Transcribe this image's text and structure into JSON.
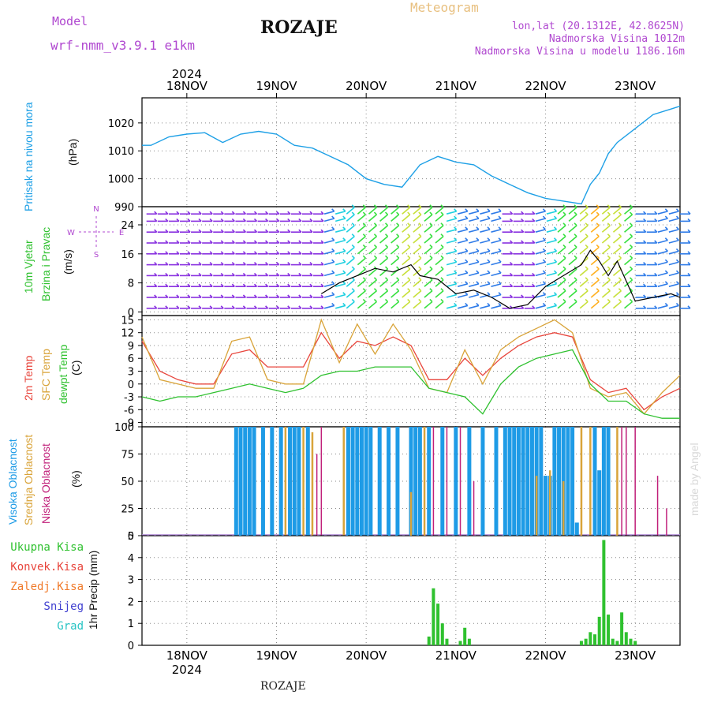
{
  "header": {
    "model_label": "Model",
    "model_name": "wrf-nmm_v3.9.1 e1km",
    "location": "ROZAJE",
    "product": "Meteogram",
    "coords": "lon,lat (20.1312E, 42.8625N)",
    "elevation": "Nadmorska Visina 1012m",
    "model_elevation": "Nadmorska Visina u modelu 1186.16m",
    "footer": "ROZAJE",
    "watermark": "made by Angel"
  },
  "colors": {
    "pressure": "#1ea0e6",
    "temp2m": "#e8453c",
    "sfc": "#d9a43a",
    "dewpt": "#2fc12f",
    "high_cloud": "#1e9be6",
    "mid_cloud": "#d9a43a",
    "low_cloud": "#c0207a",
    "precip_total": "#2fc12f",
    "precip_conv": "#e8453c",
    "precip_ice": "#f07a2a",
    "precip_snow": "#4040d0",
    "precip_grad": "#28c4c4",
    "wind_label": "#2fc12f",
    "model_text": "#b048d0"
  },
  "chart_data": {
    "type": "line",
    "x_axis": {
      "year": "2024",
      "top_labels": [
        "18NOV",
        "19NOV",
        "20NOV",
        "21NOV",
        "22NOV",
        "23NOV"
      ],
      "bottom_labels": [
        "18NOV",
        "19NOV",
        "20NOV",
        "21NOV",
        "22NOV",
        "23NOV"
      ],
      "day_positions": [
        0.5,
        1.5,
        2.5,
        3.5,
        4.5,
        5.5
      ],
      "range": [
        0,
        6
      ]
    },
    "panels": [
      {
        "id": "pressure",
        "ylabel_lines": [
          "Pritisak na nivou mora"
        ],
        "unit": "(hPa)",
        "ylim": [
          990,
          1029
        ],
        "yticks": [
          990,
          1000,
          1010,
          1020
        ],
        "series": [
          {
            "key": "pressure",
            "x": [
              0,
              0.1,
              0.3,
              0.5,
              0.7,
              0.9,
              1.1,
              1.3,
              1.5,
              1.7,
              1.9,
              2.1,
              2.3,
              2.5,
              2.7,
              2.9,
              3.1,
              3.3,
              3.5,
              3.7,
              3.9,
              4.1,
              4.3,
              4.5,
              4.7,
              4.9,
              5.0,
              5.1,
              5.2,
              5.3,
              5.5,
              5.7,
              5.9,
              6.0
            ],
            "y": [
              1012,
              1012,
              1015,
              1016,
              1016.5,
              1013,
              1016,
              1017,
              1016,
              1012,
              1011,
              1008,
              1005,
              1000,
              998,
              997,
              1005,
              1008,
              1006,
              1005,
              1001,
              998,
              995,
              993,
              992,
              991,
              998,
              1002,
              1009,
              1013,
              1018,
              1023,
              1025,
              1026
            ]
          }
        ]
      },
      {
        "id": "wind",
        "ylabel_lines": [
          "10m Vjetar",
          "Brzina i Pravac"
        ],
        "unit": "(m/s)",
        "direction_labels": [
          "N",
          "W",
          "E",
          "S"
        ],
        "ylim": [
          -1,
          29
        ],
        "yticks": [
          0,
          8,
          16,
          24
        ],
        "series": [
          {
            "key": "wind_speed",
            "x": [
              2.0,
              2.2,
              2.4,
              2.6,
              2.8,
              3.0,
              3.1,
              3.3,
              3.5,
              3.7,
              3.9,
              4.1,
              4.3,
              4.5,
              4.7,
              4.9,
              5.0,
              5.1,
              5.2,
              5.3,
              5.5,
              5.7,
              5.9,
              6.0
            ],
            "y": [
              5,
              8,
              10,
              12,
              11,
              13,
              10,
              9,
              5,
              6,
              4,
              1,
              2,
              7,
              10,
              13,
              17,
              14,
              10,
              14,
              3,
              4,
              5,
              4
            ]
          }
        ],
        "barbs": {
          "rows": [
            1,
            4,
            7,
            10,
            13,
            16,
            19,
            22,
            25,
            27
          ],
          "columns": 49,
          "calm_color": "#8830e0",
          "colors": [
            "#8830e0",
            "#2e7be8",
            "#1ed0e0",
            "#38e040",
            "#c8e03a",
            "#ffb020"
          ]
        }
      },
      {
        "id": "temperature",
        "ylabel_lines": [
          "2m Temp",
          "SFC Temp",
          "dewpt Temp"
        ],
        "unit": "(C)",
        "ylim": [
          -10,
          16
        ],
        "yticks": [
          -9,
          -6,
          -3,
          0,
          3,
          6,
          9,
          12,
          15
        ],
        "series": [
          {
            "key": "temp2m",
            "x": [
              0,
              0.2,
              0.4,
              0.6,
              0.8,
              1.0,
              1.2,
              1.4,
              1.6,
              1.8,
              2.0,
              2.2,
              2.4,
              2.6,
              2.8,
              3.0,
              3.2,
              3.4,
              3.6,
              3.8,
              4.0,
              4.2,
              4.4,
              4.6,
              4.8,
              5.0,
              5.2,
              5.4,
              5.6,
              5.8,
              6.0
            ],
            "y": [
              10,
              3,
              1,
              0,
              0,
              7,
              8,
              4,
              4,
              4,
              12,
              6,
              10,
              9,
              11,
              9,
              1,
              1,
              6,
              2,
              6,
              9,
              11,
              12,
              11,
              1,
              -2,
              -1,
              -6,
              -3,
              -1
            ]
          },
          {
            "key": "sfc",
            "x": [
              0,
              0.2,
              0.4,
              0.6,
              0.8,
              1.0,
              1.2,
              1.4,
              1.6,
              1.8,
              2.0,
              2.2,
              2.4,
              2.6,
              2.8,
              3.0,
              3.2,
              3.4,
              3.6,
              3.8,
              4.0,
              4.2,
              4.4,
              4.6,
              4.8,
              5.0,
              5.2,
              5.4,
              5.6,
              5.8,
              6.0
            ],
            "y": [
              11,
              1,
              0,
              -1,
              -1,
              10,
              11,
              1,
              0,
              0,
              15,
              5,
              14,
              7,
              14,
              8,
              -1,
              -2,
              8,
              0,
              8,
              11,
              13,
              15,
              12,
              -1,
              -3,
              -2,
              -7,
              -2,
              2
            ]
          },
          {
            "key": "dewpt",
            "x": [
              0,
              0.2,
              0.4,
              0.6,
              0.8,
              1.0,
              1.2,
              1.4,
              1.6,
              1.8,
              2.0,
              2.2,
              2.4,
              2.6,
              2.8,
              3.0,
              3.2,
              3.4,
              3.6,
              3.8,
              4.0,
              4.2,
              4.4,
              4.6,
              4.8,
              5.0,
              5.2,
              5.4,
              5.6,
              5.8,
              6.0
            ],
            "y": [
              -3,
              -4,
              -3,
              -3,
              -2,
              -1,
              0,
              -1,
              -2,
              -1,
              2,
              3,
              3,
              4,
              4,
              4,
              -1,
              -2,
              -3,
              -7,
              0,
              4,
              6,
              7,
              8,
              0,
              -4,
              -4,
              -7,
              -8,
              -8
            ]
          }
        ]
      },
      {
        "id": "clouds",
        "ylabel_lines": [
          "Visoka Oblacnost",
          "Srednja Oblacnost",
          "Niska Oblacnost"
        ],
        "unit": "(%)",
        "ylim": [
          0,
          100
        ],
        "yticks": [
          0,
          25,
          50,
          75,
          100
        ]
      },
      {
        "id": "precip",
        "ylabel_lines": [
          "Ukupna Kisa",
          "Konvek.Kisa",
          "Zaledj.Kisa",
          "Snijeg",
          "Grad"
        ],
        "unit": "1hr Precip (mm)",
        "ylim": [
          0,
          5
        ],
        "yticks": [
          0,
          1,
          2,
          3,
          4,
          5
        ],
        "series": [
          {
            "key": "precip_total",
            "x": [
              3.2,
              3.25,
              3.3,
              3.35,
              3.4,
              3.55,
              3.6,
              3.65,
              4.9,
              4.95,
              5.0,
              5.05,
              5.1,
              5.15,
              5.2,
              5.25,
              5.3,
              5.35,
              5.4,
              5.45,
              5.5
            ],
            "y": [
              0.4,
              2.6,
              1.9,
              1.0,
              0.3,
              0.2,
              0.8,
              0.3,
              0.2,
              0.3,
              0.6,
              0.5,
              1.3,
              4.8,
              1.4,
              0.3,
              0.2,
              1.5,
              0.6,
              0.3,
              0.2
            ]
          }
        ]
      }
    ],
    "clouds": {
      "high": [
        {
          "x": 1.05,
          "v": 100
        },
        {
          "x": 1.1,
          "v": 100
        },
        {
          "x": 1.15,
          "v": 100
        },
        {
          "x": 1.2,
          "v": 100
        },
        {
          "x": 1.25,
          "v": 100
        },
        {
          "x": 1.35,
          "v": 100
        },
        {
          "x": 1.45,
          "v": 100
        },
        {
          "x": 1.55,
          "v": 100
        },
        {
          "x": 1.65,
          "v": 100
        },
        {
          "x": 1.7,
          "v": 100
        },
        {
          "x": 1.75,
          "v": 100
        },
        {
          "x": 1.85,
          "v": 100
        },
        {
          "x": 2.3,
          "v": 100
        },
        {
          "x": 2.35,
          "v": 100
        },
        {
          "x": 2.4,
          "v": 100
        },
        {
          "x": 2.45,
          "v": 100
        },
        {
          "x": 2.5,
          "v": 100
        },
        {
          "x": 2.55,
          "v": 100
        },
        {
          "x": 2.65,
          "v": 100
        },
        {
          "x": 2.75,
          "v": 100
        },
        {
          "x": 2.85,
          "v": 100
        },
        {
          "x": 3.0,
          "v": 100
        },
        {
          "x": 3.05,
          "v": 100
        },
        {
          "x": 3.1,
          "v": 100
        },
        {
          "x": 3.2,
          "v": 100
        },
        {
          "x": 3.35,
          "v": 100
        },
        {
          "x": 3.5,
          "v": 100
        },
        {
          "x": 3.65,
          "v": 100
        },
        {
          "x": 3.8,
          "v": 100
        },
        {
          "x": 3.95,
          "v": 100
        },
        {
          "x": 4.05,
          "v": 100
        },
        {
          "x": 4.1,
          "v": 100
        },
        {
          "x": 4.15,
          "v": 100
        },
        {
          "x": 4.2,
          "v": 100
        },
        {
          "x": 4.25,
          "v": 100
        },
        {
          "x": 4.3,
          "v": 100
        },
        {
          "x": 4.35,
          "v": 100
        },
        {
          "x": 4.4,
          "v": 100
        },
        {
          "x": 4.45,
          "v": 100
        },
        {
          "x": 4.5,
          "v": 55
        },
        {
          "x": 4.55,
          "v": 55
        },
        {
          "x": 4.6,
          "v": 100
        },
        {
          "x": 4.65,
          "v": 100
        },
        {
          "x": 4.7,
          "v": 100
        },
        {
          "x": 4.75,
          "v": 100
        },
        {
          "x": 4.8,
          "v": 100
        },
        {
          "x": 4.85,
          "v": 12
        },
        {
          "x": 5.05,
          "v": 100
        },
        {
          "x": 5.1,
          "v": 60
        },
        {
          "x": 5.15,
          "v": 100
        },
        {
          "x": 5.2,
          "v": 100
        }
      ],
      "mid": [
        {
          "x": 1.6,
          "v": 100
        },
        {
          "x": 1.8,
          "v": 100
        },
        {
          "x": 1.9,
          "v": 95
        },
        {
          "x": 2.25,
          "v": 100
        },
        {
          "x": 3.0,
          "v": 40
        },
        {
          "x": 3.15,
          "v": 100
        },
        {
          "x": 4.4,
          "v": 55
        },
        {
          "x": 4.55,
          "v": 60
        },
        {
          "x": 4.7,
          "v": 50
        },
        {
          "x": 4.9,
          "v": 100
        },
        {
          "x": 5.0,
          "v": 100
        },
        {
          "x": 5.3,
          "v": 100
        }
      ],
      "low": [
        {
          "x": 1.95,
          "v": 75
        },
        {
          "x": 2.0,
          "v": 100
        },
        {
          "x": 3.25,
          "v": 100
        },
        {
          "x": 3.4,
          "v": 100
        },
        {
          "x": 3.55,
          "v": 100
        },
        {
          "x": 3.7,
          "v": 50
        },
        {
          "x": 5.35,
          "v": 100
        },
        {
          "x": 5.4,
          "v": 100
        },
        {
          "x": 5.5,
          "v": 100
        },
        {
          "x": 5.75,
          "v": 55
        },
        {
          "x": 5.85,
          "v": 25
        }
      ]
    }
  }
}
